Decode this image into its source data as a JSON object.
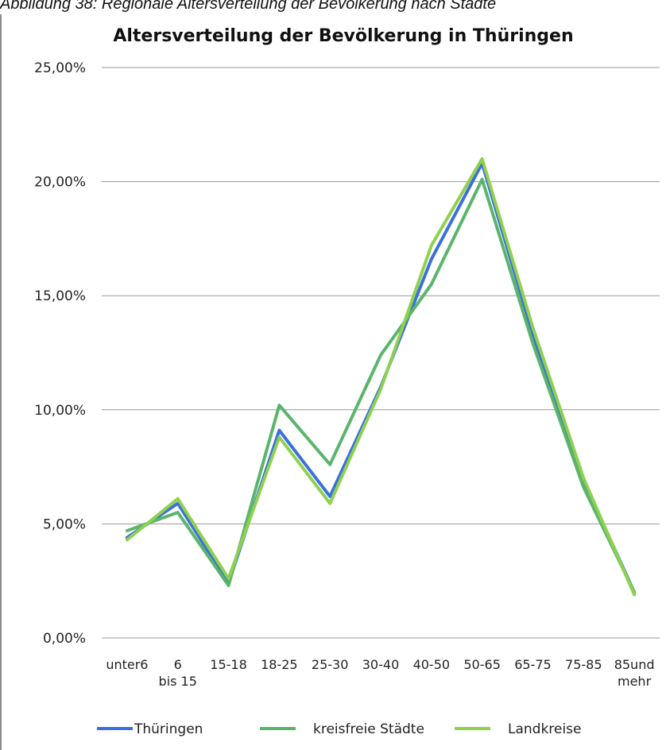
{
  "caption": "Abbildung 38: Regionale Altersverteilung der Bevölkerung nach Städte",
  "chart_data": {
    "type": "line",
    "title": "Altersverteilung der Bevölkerung in Thüringen",
    "categories": [
      "unter6",
      "6 bis 15",
      "15-18",
      "18-25",
      "25-30",
      "30-40",
      "40-50",
      "50-65",
      "65-75",
      "75-85",
      "85und mehr"
    ],
    "y_ticks": [
      "0,00%",
      "5,00%",
      "10,00%",
      "15,00%",
      "20,00%",
      "25,00%"
    ],
    "ylim": [
      0,
      25
    ],
    "grid": true,
    "legend_position": "bottom",
    "series": [
      {
        "name": "Thüringen",
        "color": "#3b6fe0",
        "values": [
          4.4,
          5.9,
          2.4,
          9.1,
          6.2,
          11.0,
          16.6,
          20.8,
          13.3,
          6.9,
          2.0
        ]
      },
      {
        "name": "kreisfreie Städte",
        "color": "#5ab56b",
        "values": [
          4.7,
          5.5,
          2.3,
          10.2,
          7.6,
          12.4,
          15.5,
          20.1,
          12.9,
          6.6,
          2.0
        ]
      },
      {
        "name": "Landkreise",
        "color": "#8fd14f",
        "values": [
          4.3,
          6.1,
          2.6,
          8.8,
          5.9,
          10.9,
          17.2,
          21.0,
          13.6,
          7.0,
          1.9
        ]
      }
    ]
  }
}
